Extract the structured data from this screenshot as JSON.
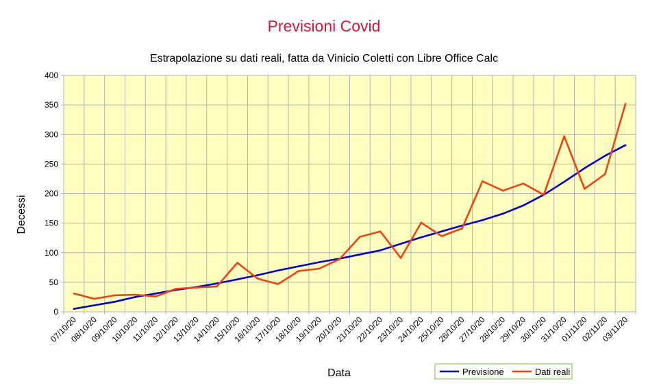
{
  "chart_data": {
    "type": "line",
    "title": "Previsioni Covid",
    "subtitle": "Estrapolazione su dati reali, fatta da Vinicio Coletti con Libre Office Calc",
    "xlabel": "Data",
    "ylabel": "Decessi",
    "ylim": [
      0,
      400
    ],
    "yticks": [
      0,
      50,
      100,
      150,
      200,
      250,
      300,
      350,
      400
    ],
    "grid": true,
    "legend_position": "bottom-right",
    "categories": [
      "07/10/20",
      "08/10/20",
      "09/10/20",
      "10/10/20",
      "11/10/20",
      "12/10/20",
      "13/10/20",
      "14/10/20",
      "15/10/20",
      "16/10/20",
      "17/10/20",
      "18/10/20",
      "19/10/20",
      "20/10/20",
      "21/10/20",
      "22/10/20",
      "23/10/20",
      "24/10/20",
      "25/10/20",
      "26/10/20",
      "27/10/20",
      "28/10/20",
      "29/10/20",
      "30/10/20",
      "31/10/20",
      "01/11/20",
      "02/11/20",
      "03/11/20"
    ],
    "series": [
      {
        "name": "Previsione",
        "color": "#0000cc",
        "values": [
          5,
          11,
          17,
          25,
          31,
          37,
          42,
          48,
          55,
          62,
          70,
          77,
          84,
          90,
          97,
          104,
          115,
          126,
          136,
          146,
          155,
          166,
          180,
          198,
          220,
          243,
          264,
          282
        ]
      },
      {
        "name": "Dati reali",
        "color": "#ee4411",
        "values": [
          31,
          22,
          28,
          29,
          26,
          39,
          41,
          43,
          83,
          56,
          47,
          69,
          73,
          89,
          127,
          136,
          91,
          151,
          128,
          141,
          221,
          205,
          217,
          198,
          297,
          208,
          233,
          352
        ]
      }
    ],
    "colors": {
      "plot_background": "#ffffc0",
      "grid": "#b3b3b3",
      "title": "#cc1a3a",
      "legend_border": "#7fbf3f"
    }
  }
}
